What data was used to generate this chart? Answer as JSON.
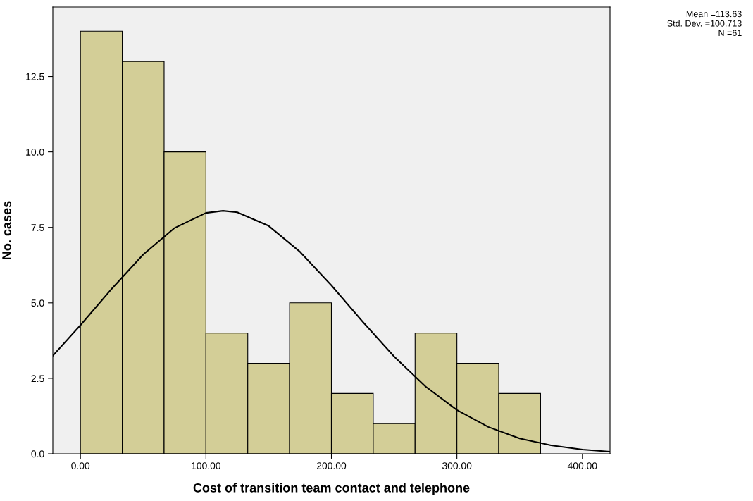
{
  "chart_data": {
    "type": "histogram",
    "xlabel": "Cost of transition team contact and telephone",
    "ylabel": "No. cases",
    "bins": [
      0,
      33.33,
      66.67,
      100,
      133.33,
      166.67,
      200,
      233.33,
      266.67,
      300,
      333.33,
      366.67
    ],
    "values": [
      14,
      13,
      10,
      4,
      3,
      5,
      2,
      1,
      4,
      3,
      2
    ],
    "color": "#d3ce97",
    "series": [
      {
        "type": "line",
        "color": "#000000",
        "x": [
          -22,
          0,
          25,
          50,
          75,
          100,
          113.63,
          125,
          150,
          175,
          200,
          225,
          250,
          275,
          300,
          325,
          350,
          375,
          400,
          422
        ],
        "values": [
          3.25,
          4.26,
          5.47,
          6.6,
          7.48,
          7.98,
          8.05,
          8.0,
          7.55,
          6.69,
          5.58,
          4.37,
          3.22,
          2.23,
          1.45,
          0.89,
          0.51,
          0.28,
          0.14,
          0.07
        ]
      }
    ],
    "xlim": [
      -22,
      422
    ],
    "ylim": [
      0,
      14.8
    ],
    "xticks": [
      {
        "value": 0,
        "label": "0.00"
      },
      {
        "value": 100,
        "label": "100.00"
      },
      {
        "value": 200,
        "label": "200.00"
      },
      {
        "value": 300,
        "label": "300.00"
      },
      {
        "value": 400,
        "label": "400.00"
      }
    ],
    "yticks": [
      {
        "value": 0,
        "label": "0.0"
      },
      {
        "value": 2.5,
        "label": "2.5"
      },
      {
        "value": 5,
        "label": "5.0"
      },
      {
        "value": 7.5,
        "label": "7.5"
      },
      {
        "value": 10,
        "label": "10.0"
      },
      {
        "value": 12.5,
        "label": "12.5"
      }
    ],
    "grid": false,
    "annotations": [
      "Mean =113.63\nStd. Dev. =100.713\nN =61"
    ]
  }
}
